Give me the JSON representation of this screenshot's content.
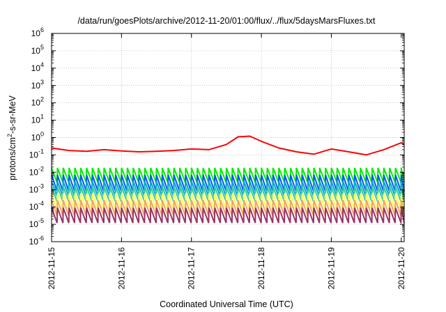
{
  "chart_data": {
    "type": "line",
    "title": "/data/run/goesPlots/archive/2012-11-20/01:00/flux/../flux/5daysMarsFluxes.txt",
    "xlabel": "Coordinated Universal Time (UTC)",
    "ylabel": {
      "prefix": "protons/cm",
      "sup": "2",
      "suffix": "-s-sr-MeV"
    },
    "y_scale": "log",
    "ylim": [
      1e-06,
      1000000.0
    ],
    "y_ticks": [
      {
        "value": 1e-06,
        "base": "10",
        "exp": "-6"
      },
      {
        "value": 1e-05,
        "base": "10",
        "exp": "-5"
      },
      {
        "value": 0.0001,
        "base": "10",
        "exp": "-4"
      },
      {
        "value": 0.001,
        "base": "10",
        "exp": "-3"
      },
      {
        "value": 0.01,
        "base": "10",
        "exp": "-2"
      },
      {
        "value": 0.1,
        "base": "10",
        "exp": "-1"
      },
      {
        "value": 1,
        "base": "10",
        "exp": "0"
      },
      {
        "value": 10,
        "base": "10",
        "exp": "1"
      },
      {
        "value": 100,
        "base": "10",
        "exp": "2"
      },
      {
        "value": 1000,
        "base": "10",
        "exp": "3"
      },
      {
        "value": 10000,
        "base": "10",
        "exp": "4"
      },
      {
        "value": 100000,
        "base": "10",
        "exp": "5"
      },
      {
        "value": 1000000,
        "base": "10",
        "exp": "6"
      }
    ],
    "xlim": [
      "2012-11-15T00:00",
      "2012-11-20T01:00"
    ],
    "x_ticks": [
      "2012-11-15",
      "2012-11-16",
      "2012-11-17",
      "2012-11-18",
      "2012-11-19",
      "2012-11-20"
    ],
    "grid": true,
    "series": [
      {
        "color": "#ff0000",
        "x": [
          "2012-11-15T00:00",
          "2012-11-15T06:00",
          "2012-11-15T12:00",
          "2012-11-15T18:00",
          "2012-11-16T00:00",
          "2012-11-16T06:00",
          "2012-11-16T12:00",
          "2012-11-16T18:00",
          "2012-11-17T00:00",
          "2012-11-17T06:00",
          "2012-11-17T12:00",
          "2012-11-17T16:00",
          "2012-11-17T20:00",
          "2012-11-18T00:00",
          "2012-11-18T06:00",
          "2012-11-18T12:00",
          "2012-11-18T18:00",
          "2012-11-19T00:00",
          "2012-11-19T06:00",
          "2012-11-19T12:00",
          "2012-11-19T18:00",
          "2012-11-20T00:00",
          "2012-11-20T01:00"
        ],
        "values": [
          0.25,
          0.18,
          0.16,
          0.2,
          0.17,
          0.15,
          0.16,
          0.18,
          0.22,
          0.2,
          0.4,
          1.1,
          1.2,
          0.6,
          0.25,
          0.15,
          0.11,
          0.22,
          0.15,
          0.1,
          0.2,
          0.5,
          0.38
        ]
      },
      {
        "color": "#00ee00",
        "low": 0.0025,
        "high": 0.018
      },
      {
        "color": "#0055ff",
        "low": 0.0008,
        "high": 0.007
      },
      {
        "color": "#00aacc",
        "low": 0.0004,
        "high": 0.003
      },
      {
        "color": "#33cc99",
        "low": 0.0002,
        "high": 0.0015
      },
      {
        "color": "#ffff55",
        "low": 7e-05,
        "high": 0.0006
      },
      {
        "color": "#f4a460",
        "low": 3e-05,
        "high": 0.00025
      },
      {
        "color": "#993366",
        "low": 1.2e-05,
        "high": 9e-05
      }
    ]
  }
}
